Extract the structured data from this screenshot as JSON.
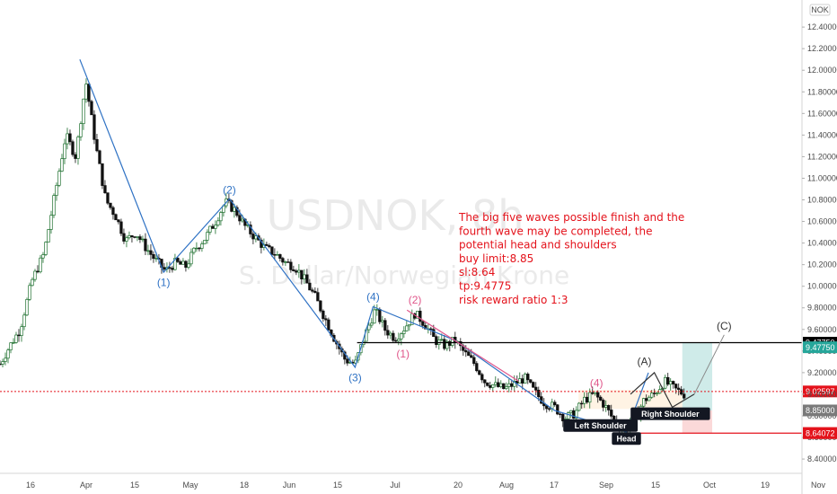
{
  "chart_data": {
    "type": "candlestick",
    "symbol_watermark": "USDNOK, 8h",
    "description_watermark": "S. Dollar/Norwegian Krone",
    "currency_badge": "NOK",
    "y_ticks": [
      "12.40000",
      "12.20000",
      "12.00000",
      "11.80000",
      "11.60000",
      "11.40000",
      "11.20000",
      "11.00000",
      "10.80000",
      "10.60000",
      "10.40000",
      "10.20000",
      "10.00000",
      "9.80000",
      "9.60000",
      "9.40000",
      "9.20000",
      "9.00000",
      "8.80000",
      "8.60000",
      "8.40000"
    ],
    "x_ticks": [
      "16",
      "Apr",
      "15",
      "May",
      "18",
      "Jun",
      "15",
      "Jul",
      "20",
      "Aug",
      "17",
      "Sep",
      "15",
      "Oct",
      "19",
      "Nov"
    ],
    "ylim": [
      8.33,
      12.48
    ],
    "price_path": [
      {
        "t": 0,
        "p": 9.28
      },
      {
        "t": 0.5,
        "p": 9.45
      },
      {
        "t": 1,
        "p": 9.6
      },
      {
        "t": 1.6,
        "p": 10.05
      },
      {
        "t": 2.2,
        "p": 10.3
      },
      {
        "t": 2.8,
        "p": 10.9
      },
      {
        "t": 3.3,
        "p": 11.4
      },
      {
        "t": 3.8,
        "p": 11.2
      },
      {
        "t": 4.3,
        "p": 11.9
      },
      {
        "t": 4.8,
        "p": 11.3
      },
      {
        "t": 5.3,
        "p": 10.8
      },
      {
        "t": 5.8,
        "p": 10.65
      },
      {
        "t": 6.3,
        "p": 10.42
      },
      {
        "t": 6.8,
        "p": 10.5
      },
      {
        "t": 7.3,
        "p": 10.36
      },
      {
        "t": 7.8,
        "p": 10.24
      },
      {
        "t": 8.3,
        "p": 10.14
      },
      {
        "t": 8.8,
        "p": 10.22
      },
      {
        "t": 9.3,
        "p": 10.18
      },
      {
        "t": 9.8,
        "p": 10.35
      },
      {
        "t": 10.3,
        "p": 10.45
      },
      {
        "t": 10.8,
        "p": 10.6
      },
      {
        "t": 11.3,
        "p": 10.78
      },
      {
        "t": 11.8,
        "p": 10.7
      },
      {
        "t": 12.3,
        "p": 10.55
      },
      {
        "t": 12.8,
        "p": 10.45
      },
      {
        "t": 13.3,
        "p": 10.35
      },
      {
        "t": 13.8,
        "p": 10.3
      },
      {
        "t": 14.3,
        "p": 10.22
      },
      {
        "t": 14.8,
        "p": 10.18
      },
      {
        "t": 15.3,
        "p": 10.05
      },
      {
        "t": 15.8,
        "p": 9.9
      },
      {
        "t": 16.3,
        "p": 9.7
      },
      {
        "t": 16.8,
        "p": 9.5
      },
      {
        "t": 17.3,
        "p": 9.32
      },
      {
        "t": 17.8,
        "p": 9.28
      },
      {
        "t": 18.3,
        "p": 9.55
      },
      {
        "t": 18.8,
        "p": 9.78
      },
      {
        "t": 19.3,
        "p": 9.6
      },
      {
        "t": 19.8,
        "p": 9.52
      },
      {
        "t": 20.3,
        "p": 9.62
      },
      {
        "t": 20.8,
        "p": 9.75
      },
      {
        "t": 21.3,
        "p": 9.65
      },
      {
        "t": 21.8,
        "p": 9.5
      },
      {
        "t": 22.3,
        "p": 9.45
      },
      {
        "t": 22.8,
        "p": 9.5
      },
      {
        "t": 23.3,
        "p": 9.38
      },
      {
        "t": 23.8,
        "p": 9.28
      },
      {
        "t": 24.3,
        "p": 9.12
      },
      {
        "t": 24.8,
        "p": 9.08
      },
      {
        "t": 25.3,
        "p": 9.05
      },
      {
        "t": 25.8,
        "p": 9.1
      },
      {
        "t": 26.3,
        "p": 9.15
      },
      {
        "t": 26.8,
        "p": 9.02
      },
      {
        "t": 27.3,
        "p": 8.92
      },
      {
        "t": 27.8,
        "p": 8.88
      },
      {
        "t": 28.3,
        "p": 8.78
      },
      {
        "t": 28.8,
        "p": 8.82
      },
      {
        "t": 29.3,
        "p": 8.95
      },
      {
        "t": 29.8,
        "p": 9.0
      },
      {
        "t": 30.3,
        "p": 8.9
      },
      {
        "t": 30.8,
        "p": 8.75
      },
      {
        "t": 31.3,
        "p": 8.66
      },
      {
        "t": 31.8,
        "p": 8.78
      },
      {
        "t": 32.3,
        "p": 8.95
      },
      {
        "t": 32.8,
        "p": 9.0
      },
      {
        "t": 33.3,
        "p": 9.12
      },
      {
        "t": 33.8,
        "p": 9.05
      },
      {
        "t": 34.3,
        "p": 9.0
      }
    ],
    "wave_lines": [
      {
        "color": "#2f72c4",
        "points": [
          {
            "t": 4.0,
            "p": 12.1
          },
          {
            "t": 8.2,
            "p": 10.13
          },
          {
            "t": 11.5,
            "p": 10.81
          },
          {
            "t": 17.8,
            "p": 9.25
          },
          {
            "t": 18.7,
            "p": 9.81
          },
          {
            "t": 22.8,
            "p": 9.5
          },
          {
            "t": 27.8,
            "p": 8.85
          },
          {
            "t": 31.4,
            "p": 8.65
          },
          {
            "t": 32.5,
            "p": 9.2
          }
        ]
      },
      {
        "color": "#e0568a",
        "points": [
          {
            "t": 20.4,
            "p": 9.78
          },
          {
            "t": 26.0,
            "p": 9.12
          }
        ]
      },
      {
        "color": "#333333",
        "points": [
          {
            "t": 31.6,
            "p": 9.0
          },
          {
            "t": 32.8,
            "p": 9.2
          },
          {
            "t": 33.7,
            "p": 8.88
          },
          {
            "t": 34.8,
            "p": 9.0
          }
        ]
      }
    ],
    "wave_labels": [
      {
        "text": "(1)",
        "t": 8.2,
        "p": 10.0,
        "color": "#2f72c4"
      },
      {
        "text": "(2)",
        "t": 11.5,
        "p": 10.86,
        "color": "#2f72c4"
      },
      {
        "text": "(3)",
        "t": 17.8,
        "p": 9.12,
        "color": "#2f72c4"
      },
      {
        "text": "(4)",
        "t": 18.7,
        "p": 9.87,
        "color": "#2f72c4"
      },
      {
        "text": "(1)",
        "t": 20.2,
        "p": 9.34,
        "color": "#e0568a"
      },
      {
        "text": "(2)",
        "t": 20.8,
        "p": 9.84,
        "color": "#e0568a"
      },
      {
        "text": "(4)",
        "t": 29.9,
        "p": 9.07,
        "color": "#e0568a"
      },
      {
        "text": "(A)",
        "t": 32.3,
        "p": 9.27,
        "color": "#333333"
      },
      {
        "text": "(C)",
        "t": 36.3,
        "p": 9.6,
        "color": "#333333"
      }
    ],
    "horizontal_levels": [
      {
        "price": 9.4775,
        "color": "#000000",
        "label": "9.47750",
        "label_bg": "#000000",
        "label_fg": "#ffffff"
      },
      {
        "price": 9.02597,
        "color": "#e4121b",
        "label": "9.02597",
        "label_bg": "#e4121b",
        "label_fg": "#ffffff"
      },
      {
        "price": 8.64,
        "color": "#e4121b",
        "label": "8.64000",
        "label_bg": "#e4121b",
        "label_fg": "#ffffff"
      }
    ],
    "axis_labels": [
      {
        "text": "9.47750",
        "price": 9.435,
        "bg": "#26a69a",
        "fg": "#ffffff"
      },
      {
        "text": "8.85000",
        "price": 8.85,
        "bg": "#7a7a7a",
        "fg": "#ffffff"
      },
      {
        "text": "8.64072",
        "price": 8.64072,
        "bg": "#e4121b",
        "fg": "#ffffff"
      }
    ],
    "patterns": [
      {
        "label": "Left Shoulder",
        "t": 30.1,
        "p": 8.71
      },
      {
        "label": "Head",
        "t": 31.4,
        "p": 8.59
      },
      {
        "label": "Right Shoulder",
        "t": 33.6,
        "p": 8.82
      }
    ],
    "trade_zone": {
      "t_start": 34.2,
      "t_end": 35.7,
      "entry": 8.85,
      "target": 9.4775,
      "stop": 8.64
    },
    "annotation_lines": [
      "The big five waves possible finish and the",
      "fourth wave may be completed, the",
      "potential head and shoulders",
      "buy limit:8.85",
      "sl:8.64",
      "tp:9.4775",
      "risk reward ratio 1:3"
    ]
  }
}
